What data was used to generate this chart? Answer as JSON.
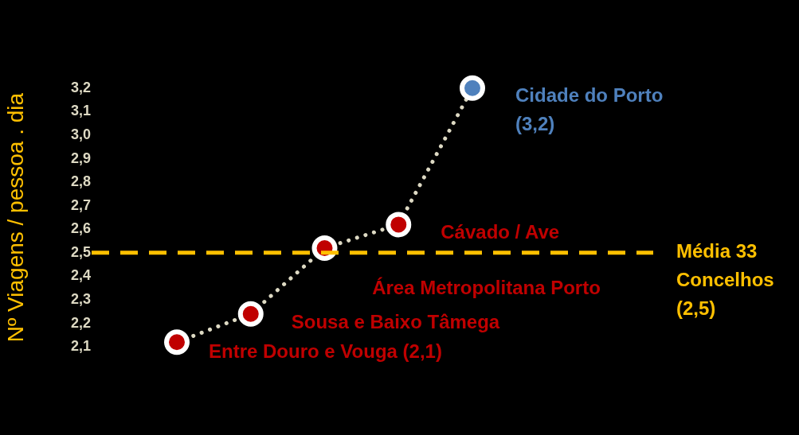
{
  "chart_data": {
    "type": "line",
    "ylabel": "Nº Viagens / pessoa . dia",
    "categories": [
      null,
      null,
      null,
      null,
      null
    ],
    "series": [
      {
        "color": "#ddd9c3",
        "colors": [
          "#c00000",
          "#c00000",
          "#c00000",
          "#c00000",
          "#4f81bd"
        ],
        "values": [
          2.12,
          2.24,
          2.52,
          2.62,
          3.2
        ]
      }
    ],
    "ylim": [
      2.1,
      3.2
    ],
    "yticks": [
      {
        "value": 2.1,
        "label": "2,1"
      },
      {
        "value": 2.2,
        "label": "2,2"
      },
      {
        "value": 2.3,
        "label": "2,3"
      },
      {
        "value": 2.4,
        "label": "2,4"
      },
      {
        "value": 2.5,
        "label": "2,5"
      },
      {
        "value": 2.6,
        "label": "2,6"
      },
      {
        "value": 2.7,
        "label": "2,7"
      },
      {
        "value": 2.8,
        "label": "2,8"
      },
      {
        "value": 2.9,
        "label": "2,9"
      },
      {
        "value": 3.0,
        "label": "3,0"
      },
      {
        "value": 3.1,
        "label": "3,1"
      },
      {
        "value": 3.2,
        "label": "3,2"
      }
    ],
    "grid": false,
    "legend": false,
    "marker": "circle",
    "line_style": "dotted",
    "ref_lines": [
      {
        "axis": "y",
        "value": 2.5,
        "label": "Média 33 Concelhos (2,5)",
        "color": "#ffc000",
        "line_style": "dashed"
      }
    ],
    "annotations": [
      "Entre Douro e Vouga (2,1)",
      "Sousa e Baixo Tâmega",
      "Área Metropolitana Porto",
      "Cávado / Ave",
      "Cidade do Porto (3,2)"
    ]
  }
}
